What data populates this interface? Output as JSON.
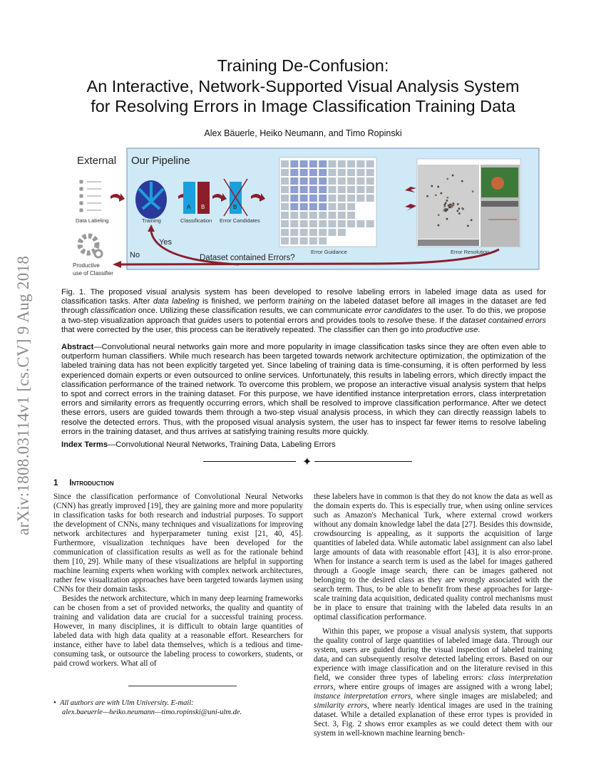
{
  "sidebar_stamp": "arXiv:1808.03114v1  [cs.CV]  9 Aug 2018",
  "title_lines": [
    "Training De-Confusion:",
    "An Interactive, Network-Supported Visual Analysis System",
    "for Resolving Errors in Image Classification Training Data"
  ],
  "authors": "Alex Bäuerle, Heiko Neumann, and Timo Ropinski",
  "figure": {
    "external_label": "External",
    "pipeline_label": "Our Pipeline",
    "data_labeling": "Data Labeling",
    "training": "Training",
    "classification": "Classification",
    "class_a": "A",
    "class_b": "B",
    "error_candidates": "Error Candidates",
    "error_guidance": "Error Guidance",
    "error_resolution": "Error Resolution",
    "productive_line1": "Productive",
    "productive_line2": "use of Classifier",
    "yes": "Yes",
    "no": "No",
    "question": "Dataset contained Errors?",
    "colors": {
      "panel": "#cfe9f7",
      "arrow": "#8b1e2b",
      "blue": "#1aa0dc",
      "brain": "#2a3a9c"
    }
  },
  "caption": {
    "label": "Fig. 1.",
    "parts": [
      " The proposed visual analysis system has been developed to resolve labeling errors in labeled image data as used for classification tasks. After ",
      "data labeling",
      " is finished, we perform ",
      "training",
      " on the labeled dataset before all images in the dataset are fed through ",
      "classification",
      " once. Utilizing these classification results, we can communicate ",
      "error candidates",
      " to the user. To do this, we propose a two-step visualization approach that ",
      "guides",
      " users to potential errors and provides tools to ",
      "resolve",
      " these. If the ",
      "dataset contained errors",
      " that were corrected by the user, this process can be iteratively repeated. The classifier can then go into ",
      "productive use",
      "."
    ]
  },
  "abstract": {
    "label": "Abstract",
    "text": "—Convolutional neural networks gain more and more popularity in image classification tasks since they are often even able to outperform human classifiers. While much research has been targeted towards network architecture optimization, the optimization of the labeled training data has not been explicitly targeted yet. Since labeling of training data is time-consuming, it is often performed by less experienced domain experts or even outsourced to online services. Unfortunately, this results in labeling errors, which directly impact the classification performance of the trained network. To overcome this problem, we propose an interactive visual analysis system that helps to spot and correct errors in the training dataset. For this purpose, we have identified instance interpretation errors, class interpretation errors and similarity errors as frequently occurring errors, which shall be resolved to improve classification performance. After we detect these errors, users are guided towards them through a two-step visual analysis process, in which they can directly reassign labels to resolve the detected errors. Thus, with the proposed visual analysis system, the user has to inspect far fewer items to resolve labeling errors in the training dataset, and thus arrives at satisfying training results more quickly."
  },
  "index_terms": {
    "label": "Index Terms",
    "text": "—Convolutional Neural Networks, Training Data, Labeling Errors"
  },
  "section": {
    "number": "1",
    "title": "Introduction"
  },
  "left_col": {
    "p1": "Since the classification performance of Convolutional Neural Networks (CNN) has greatly improved [19], they are gaining more and more popularity in classification tasks for both research and industrial purposes. To support the development of CNNs, many techniques and visualizations for improving network architectures and hyperparameter tuning exist [21, 40, 45]. Furthermore, visualization techniques have been developed for the communication of classification results as well as for the rationale behind them [10, 29]. While many of these visualizations are helpful in supporting machine learning experts when working with complex network architectures, rather few visualization approaches have been targeted towards laymen using CNNs for their domain tasks.",
    "p2": "Besides the network architecture, which in many deep learning frameworks can be chosen from a set of provided networks, the quality and quantity of training and validation data are crucial for a successful training process. However, in many disciplines, it is difficult to obtain large quantities of labeled data with high data quality at a reasonable effort. Researchers for instance, either have to label data themselves, which is a tedious and time-consuming task, or outsource the labeling process to coworkers, students, or paid crowd workers. What all of"
  },
  "footnote": {
    "line1": "All authors are with Ulm University. E-mail:",
    "line2": "alex.baeuerle—heiko.neumann—timo.ropinski@uni-ulm.de."
  },
  "right_col": {
    "p1": "these labelers have in common is that they do not know the data as well as the domain experts do. This is especially true, when using online services such as Amazon's Mechanical Turk, where external crowd workers without any domain knowledge label the data [27]. Besides this downside, crowdsourcing is appealing, as it supports the acquisition of large quantities of labeled data. While automatic label assignment can also label large amounts of data with reasonable effort [43], it is also error-prone. When for instance a search term is used as the label for images gathered through a Google image search, there can be images gathered not belonging to the desired class as they are wrongly associated with the search term. Thus, to be able to benefit from these approaches for large-scale training data acquisition, dedicated quality control mechanisms must be in place to ensure that training with the labeled data results in an optimal classification performance.",
    "p2_parts": [
      "Within this paper, we propose a visual analysis system, that supports the quality control of large quantities of labeled image data. Through our system, users are guided during the visual inspection of labeled training data, and can subsequently resolve detected labeling errors. Based on our experience with image classification and on the literature revised in this field, we consider three types of labeling errors: ",
      "class interpretation errors",
      ", where entire groups of images are assigned with a wrong label; ",
      "instance interpretation errors",
      ", where single images are mislabeled; and ",
      "similarity errors",
      ", where nearly identical images are used in the training dataset. While a detailed explanation of these error types is provided in Sect. 3, Fig. 2 shows error examples as we could detect them with our system in well-known machine learning bench-"
    ]
  }
}
